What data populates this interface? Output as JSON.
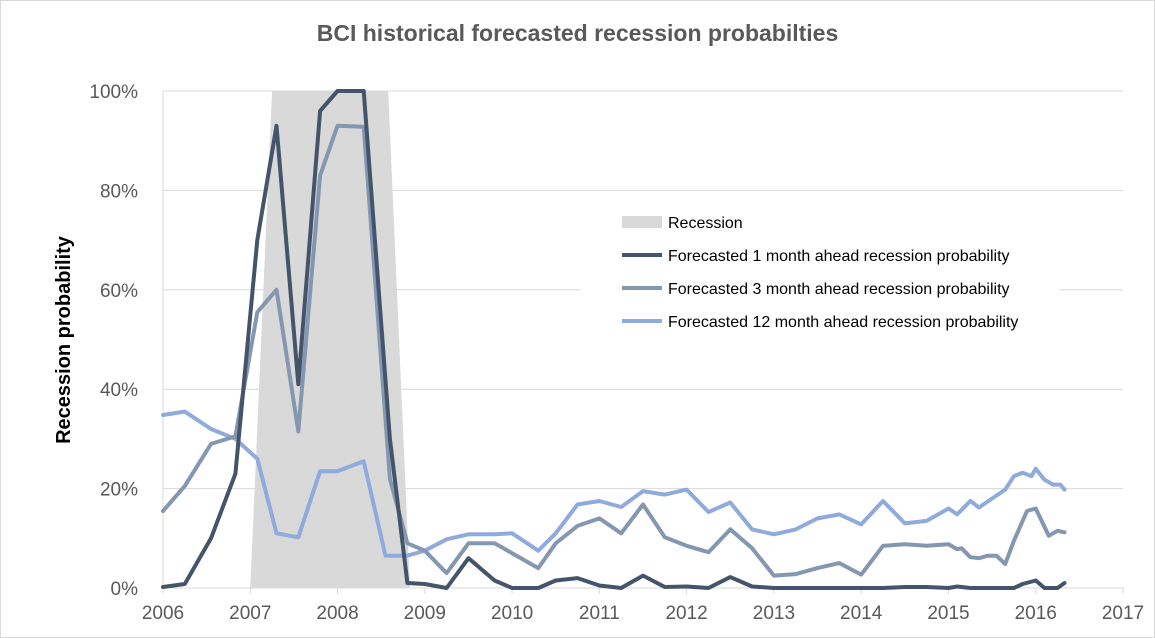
{
  "chart_data": {
    "type": "line",
    "title": "BCI historical forecasted recession probabilties",
    "xlabel": "",
    "ylabel": "Recession probability",
    "xlim": [
      2006,
      2017
    ],
    "ylim": [
      0,
      100
    ],
    "x_ticks": [
      "2006",
      "2007",
      "2008",
      "2009",
      "2010",
      "2011",
      "2012",
      "2013",
      "2014",
      "2015",
      "2016",
      "2017"
    ],
    "y_ticks": [
      "0%",
      "20%",
      "40%",
      "60%",
      "80%",
      "100%"
    ],
    "grid": "horizontal",
    "legend_position": "center-right",
    "recession": {
      "name": "Recession",
      "color": "#d9d9d9",
      "points": [
        [
          2007.0,
          0
        ],
        [
          2007.25,
          100
        ],
        [
          2008.58,
          100
        ],
        [
          2008.83,
          0
        ]
      ]
    },
    "series": [
      {
        "name": "Forecasted 1 month ahead recession probability",
        "color": "#44546a",
        "points": [
          [
            2006.0,
            0.2
          ],
          [
            2006.25,
            0.8
          ],
          [
            2006.55,
            10
          ],
          [
            2006.83,
            23
          ],
          [
            2007.08,
            70
          ],
          [
            2007.3,
            93
          ],
          [
            2007.55,
            41
          ],
          [
            2007.8,
            96
          ],
          [
            2008.0,
            100
          ],
          [
            2008.3,
            100
          ],
          [
            2008.6,
            30
          ],
          [
            2008.8,
            1
          ],
          [
            2009.0,
            0.8
          ],
          [
            2009.25,
            0
          ],
          [
            2009.5,
            6
          ],
          [
            2009.8,
            1.5
          ],
          [
            2010.0,
            0
          ],
          [
            2010.3,
            0
          ],
          [
            2010.5,
            1.5
          ],
          [
            2010.75,
            2
          ],
          [
            2011.0,
            0.5
          ],
          [
            2011.25,
            0
          ],
          [
            2011.5,
            2.5
          ],
          [
            2011.75,
            0.2
          ],
          [
            2012.0,
            0.3
          ],
          [
            2012.25,
            0
          ],
          [
            2012.5,
            2.2
          ],
          [
            2012.75,
            0.3
          ],
          [
            2013.0,
            0
          ],
          [
            2013.25,
            0
          ],
          [
            2013.5,
            0
          ],
          [
            2013.75,
            0
          ],
          [
            2014.0,
            0
          ],
          [
            2014.25,
            0
          ],
          [
            2014.5,
            0.2
          ],
          [
            2014.75,
            0.2
          ],
          [
            2015.0,
            0
          ],
          [
            2015.1,
            0.3
          ],
          [
            2015.25,
            0
          ],
          [
            2015.5,
            0
          ],
          [
            2015.75,
            0
          ],
          [
            2015.85,
            0.8
          ],
          [
            2016.0,
            1.5
          ],
          [
            2016.1,
            0
          ],
          [
            2016.25,
            0
          ],
          [
            2016.33,
            1
          ]
        ]
      },
      {
        "name": "Forecasted 3 month ahead recession probability",
        "color": "#8497b0",
        "points": [
          [
            2006.0,
            15.5
          ],
          [
            2006.25,
            20.5
          ],
          [
            2006.55,
            29
          ],
          [
            2006.83,
            30.5
          ],
          [
            2007.08,
            55.5
          ],
          [
            2007.3,
            60
          ],
          [
            2007.55,
            31.5
          ],
          [
            2007.8,
            83
          ],
          [
            2008.0,
            93
          ],
          [
            2008.3,
            92.8
          ],
          [
            2008.6,
            22
          ],
          [
            2008.8,
            9
          ],
          [
            2009.0,
            7.5
          ],
          [
            2009.25,
            3
          ],
          [
            2009.5,
            9
          ],
          [
            2009.8,
            9
          ],
          [
            2010.0,
            7
          ],
          [
            2010.3,
            4
          ],
          [
            2010.5,
            9
          ],
          [
            2010.75,
            12.5
          ],
          [
            2011.0,
            14
          ],
          [
            2011.25,
            11
          ],
          [
            2011.5,
            16.8
          ],
          [
            2011.75,
            10.2
          ],
          [
            2012.0,
            8.5
          ],
          [
            2012.25,
            7.2
          ],
          [
            2012.5,
            11.8
          ],
          [
            2012.75,
            8
          ],
          [
            2013.0,
            2.5
          ],
          [
            2013.25,
            2.8
          ],
          [
            2013.5,
            4
          ],
          [
            2013.75,
            5
          ],
          [
            2014.0,
            2.7
          ],
          [
            2014.25,
            8.5
          ],
          [
            2014.5,
            8.8
          ],
          [
            2014.75,
            8.5
          ],
          [
            2015.0,
            8.8
          ],
          [
            2015.1,
            7.8
          ],
          [
            2015.15,
            8
          ],
          [
            2015.25,
            6.2
          ],
          [
            2015.35,
            6
          ],
          [
            2015.45,
            6.5
          ],
          [
            2015.55,
            6.5
          ],
          [
            2015.65,
            4.8
          ],
          [
            2015.75,
            9.5
          ],
          [
            2015.9,
            15.5
          ],
          [
            2016.0,
            16
          ],
          [
            2016.15,
            10.5
          ],
          [
            2016.25,
            11.5
          ],
          [
            2016.33,
            11.2
          ]
        ]
      },
      {
        "name": "Forecasted 12 month ahead recession probability",
        "color": "#8faadc",
        "points": [
          [
            2006.0,
            34.8
          ],
          [
            2006.25,
            35.5
          ],
          [
            2006.55,
            32
          ],
          [
            2006.83,
            30
          ],
          [
            2007.08,
            26
          ],
          [
            2007.3,
            11
          ],
          [
            2007.55,
            10.2
          ],
          [
            2007.8,
            23.5
          ],
          [
            2008.0,
            23.5
          ],
          [
            2008.3,
            25.5
          ],
          [
            2008.55,
            6.5
          ],
          [
            2008.8,
            6.5
          ],
          [
            2009.0,
            7.5
          ],
          [
            2009.25,
            9.8
          ],
          [
            2009.5,
            10.8
          ],
          [
            2009.8,
            10.8
          ],
          [
            2010.0,
            11
          ],
          [
            2010.3,
            7.5
          ],
          [
            2010.5,
            11
          ],
          [
            2010.75,
            16.8
          ],
          [
            2011.0,
            17.5
          ],
          [
            2011.25,
            16.3
          ],
          [
            2011.5,
            19.5
          ],
          [
            2011.75,
            18.8
          ],
          [
            2012.0,
            19.8
          ],
          [
            2012.25,
            15.3
          ],
          [
            2012.5,
            17.2
          ],
          [
            2012.75,
            11.8
          ],
          [
            2013.0,
            10.8
          ],
          [
            2013.25,
            11.8
          ],
          [
            2013.5,
            14
          ],
          [
            2013.75,
            14.8
          ],
          [
            2014.0,
            12.8
          ],
          [
            2014.25,
            17.5
          ],
          [
            2014.5,
            13
          ],
          [
            2014.75,
            13.5
          ],
          [
            2015.0,
            16
          ],
          [
            2015.1,
            14.8
          ],
          [
            2015.25,
            17.5
          ],
          [
            2015.35,
            16.2
          ],
          [
            2015.5,
            18
          ],
          [
            2015.65,
            19.8
          ],
          [
            2015.75,
            22.5
          ],
          [
            2015.85,
            23.2
          ],
          [
            2015.95,
            22.5
          ],
          [
            2016.0,
            24
          ],
          [
            2016.1,
            21.8
          ],
          [
            2016.2,
            20.8
          ],
          [
            2016.28,
            20.8
          ],
          [
            2016.33,
            19.8
          ]
        ]
      }
    ]
  }
}
